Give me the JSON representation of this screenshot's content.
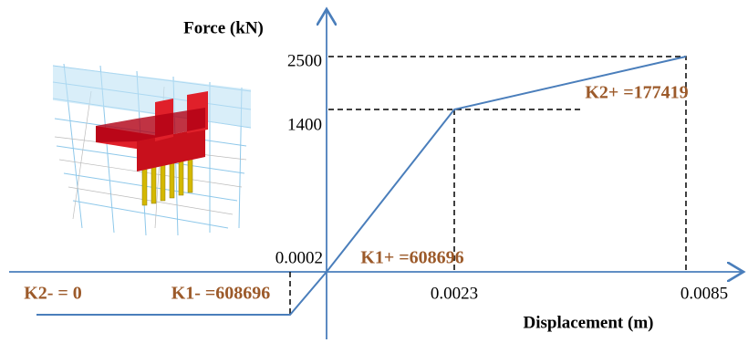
{
  "axes": {
    "y_label": "Force (kN)",
    "x_label": "Displacement (m)"
  },
  "y_ticks": [
    "2500",
    "1400",
    "0.0002"
  ],
  "x_ticks": [
    "0.0023",
    "0.0085"
  ],
  "annotations": [
    "K2+ =177419",
    "K1+ =608696",
    "K2- = 0",
    "K1- =608696"
  ]
}
